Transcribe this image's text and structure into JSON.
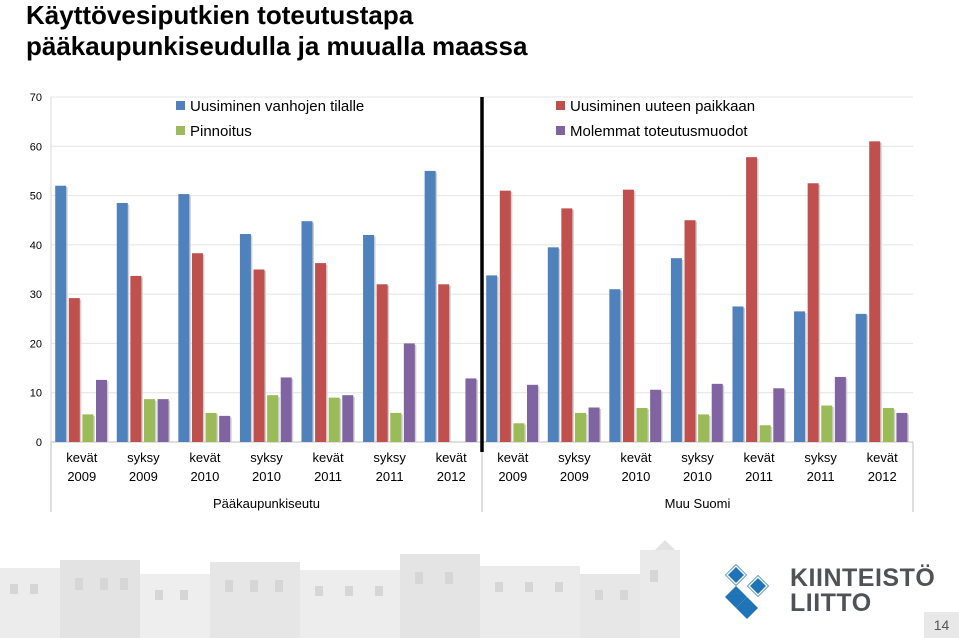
{
  "title": {
    "line1": "Käyttövesiputkien toteutustapa",
    "line2": "pääkaupunkiseudulla ja muualla maassa"
  },
  "brand": {
    "line1": "KIINTEISTÖ",
    "line2": "LIITTO"
  },
  "page_number": "14",
  "chart_data": {
    "type": "bar",
    "ylim": [
      0,
      70
    ],
    "yticks": [
      0,
      10,
      20,
      30,
      40,
      50,
      60,
      70
    ],
    "grid": true,
    "legend_position": "top",
    "categories": [
      [
        "kevät",
        "2009"
      ],
      [
        "syksy",
        "2009"
      ],
      [
        "kevät",
        "2010"
      ],
      [
        "syksy",
        "2010"
      ],
      [
        "kevät",
        "2011"
      ],
      [
        "syksy",
        "2011"
      ],
      [
        "kevät",
        "2012"
      ],
      [
        "kevät",
        "2009"
      ],
      [
        "syksy",
        "2009"
      ],
      [
        "kevät",
        "2010"
      ],
      [
        "syksy",
        "2010"
      ],
      [
        "kevät",
        "2011"
      ],
      [
        "syksy",
        "2011"
      ],
      [
        "kevät",
        "2012"
      ]
    ],
    "groups": [
      {
        "label": "Pääkaupunkiseutu",
        "count": 7
      },
      {
        "label": "Muu Suomi",
        "count": 7
      }
    ],
    "series": [
      {
        "name": "Uusiminen vanhojen tilalle",
        "color": "#4f81bd",
        "values": [
          52,
          48.5,
          50.3,
          42.2,
          44.8,
          42,
          55,
          33.8,
          39.5,
          31,
          37.3,
          27.5,
          26.5,
          26
        ]
      },
      {
        "name": "Uusiminen uuteen paikkaan",
        "color": "#c0504d",
        "values": [
          29.2,
          33.7,
          38.3,
          35,
          36.3,
          32,
          32,
          51,
          47.4,
          51.2,
          45,
          57.8,
          52.5,
          61
        ]
      },
      {
        "name": "Pinnoitus",
        "color": "#9bbb59",
        "values": [
          5.6,
          8.7,
          5.9,
          9.5,
          9,
          5.9,
          0,
          3.8,
          5.9,
          6.9,
          5.6,
          3.4,
          7.4,
          6.9
        ]
      },
      {
        "name": "Molemmat toteutusmuodot",
        "color": "#8064a2",
        "values": [
          12.6,
          8.7,
          5.3,
          13.1,
          9.5,
          20,
          12.9,
          11.6,
          7,
          10.6,
          11.8,
          10.9,
          13.2,
          5.9
        ]
      }
    ]
  }
}
